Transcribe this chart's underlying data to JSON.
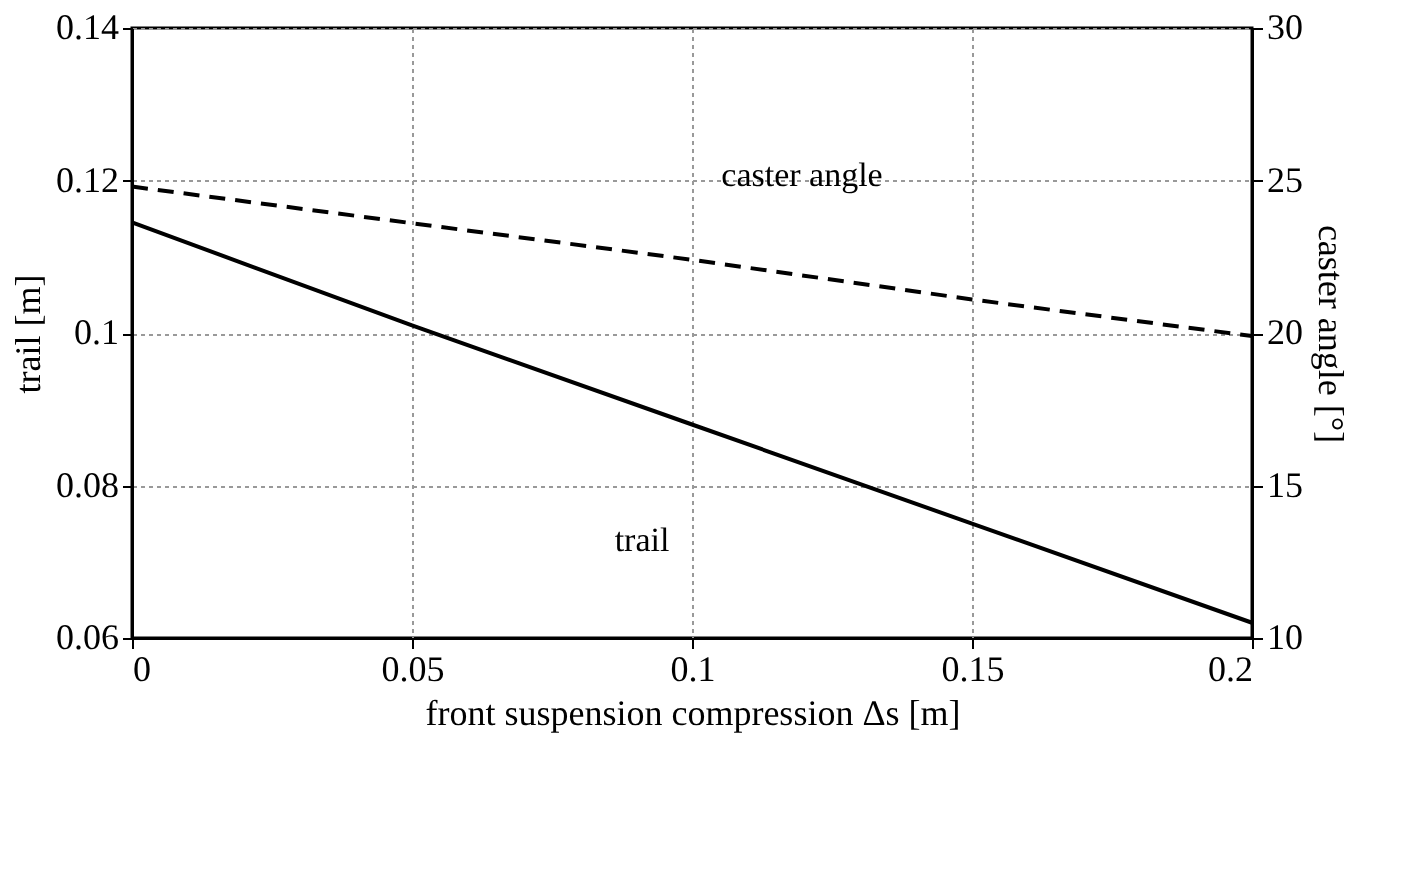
{
  "chart_data": {
    "type": "line",
    "xlabel": "front suspension compression  Δs [m]",
    "ylabel": "trail [m]",
    "y2label": "caster angle  [°]",
    "xlim": [
      0,
      0.2
    ],
    "xticks": [
      0,
      0.05,
      0.1,
      0.15,
      0.2
    ],
    "ylim": [
      0.06,
      0.14
    ],
    "yticks": [
      0.06,
      0.08,
      0.1,
      0.12,
      0.14
    ],
    "y2lim": [
      10,
      30
    ],
    "y2ticks": [
      10,
      15,
      20,
      25,
      30
    ],
    "grid": true,
    "series": [
      {
        "name": "trail",
        "color": "#000000",
        "x": [
          0,
          0.05,
          0.1,
          0.15,
          0.2
        ],
        "values": [
          0.1145,
          0.101,
          0.088,
          0.075,
          0.062
        ],
        "line_style": "solid"
      },
      {
        "name": "caster angle",
        "color": "#000000",
        "x": [
          0,
          0.05,
          0.1,
          0.15,
          0.2
        ],
        "values": [
          24.8,
          23.6,
          22.4,
          21.1,
          19.9
        ],
        "line_style": "dashed",
        "axis": "y2"
      }
    ]
  }
}
